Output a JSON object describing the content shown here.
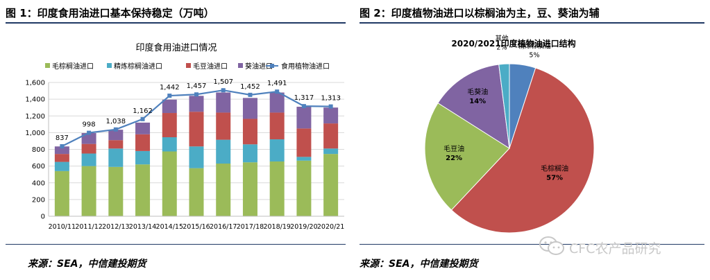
{
  "figure1": {
    "heading": "图 1：印度食用油进口基本保持稳定（万吨）",
    "source": "来源：SEA，中信建投期货"
  },
  "figure2": {
    "heading": "图 2：印度植物油进口以棕榈油为主，豆、葵油为辅",
    "source": "来源：SEA，中信建投期货"
  },
  "watermark": {
    "text": "CFC农产品研究",
    "icon": "wechat-icon"
  },
  "chart_data": [
    {
      "type": "bar",
      "stacked": true,
      "title": "印度食用油进口情况",
      "xlabel": "",
      "ylabel": "",
      "ylim": [
        0,
        1600
      ],
      "yticks": [
        "0",
        "200",
        "400",
        "600",
        "800",
        "1,000",
        "1,200",
        "1,400",
        "1,600"
      ],
      "grid": true,
      "legend_position": "top",
      "categories": [
        "2010/11",
        "2011/12",
        "2012/13",
        "2013/14",
        "2014/15",
        "2015/16",
        "2016/17",
        "2017/18",
        "2018/19",
        "2019/20",
        "2020/21"
      ],
      "series": [
        {
          "name": "毛棕榈油进口",
          "color": "#9bbb59",
          "values": [
            540,
            600,
            590,
            620,
            775,
            575,
            630,
            645,
            655,
            665,
            745
          ]
        },
        {
          "name": "精炼棕榈油进口",
          "color": "#4bacc6",
          "values": [
            110,
            150,
            220,
            160,
            170,
            260,
            285,
            215,
            265,
            45,
            65
          ]
        },
        {
          "name": "毛豆油进口",
          "color": "#c0504d",
          "values": [
            95,
            115,
            100,
            200,
            290,
            415,
            325,
            305,
            320,
            340,
            300
          ]
        },
        {
          "name": "葵油进口",
          "color": "#8064a2",
          "values": [
            90,
            130,
            125,
            140,
            160,
            190,
            240,
            250,
            240,
            260,
            190
          ]
        }
      ],
      "total": {
        "name": "食用植物油进口",
        "color": "#4f81bd",
        "values": [
          837,
          998,
          1038,
          1162,
          1442,
          1457,
          1507,
          1452,
          1491,
          1317,
          1313
        ],
        "labels": [
          "837",
          "998",
          "1,038",
          "1,162",
          "1,442",
          "1,457",
          "1,507",
          "1,452",
          "1,491",
          "1,317",
          "1,313"
        ]
      }
    },
    {
      "type": "pie",
      "title": "2020/2021印度植物油进口结构",
      "slices": [
        {
          "name": "精炼棕榈油",
          "value": 5,
          "label": "5%",
          "color": "#4f81bd"
        },
        {
          "name": "毛棕榈油",
          "value": 57,
          "label": "57%",
          "color": "#c0504d"
        },
        {
          "name": "毛豆油",
          "value": 22,
          "label": "22%",
          "color": "#9bbb59"
        },
        {
          "name": "毛葵油",
          "value": 14,
          "label": "14%",
          "color": "#8064a2"
        },
        {
          "name": "其他",
          "value": 2,
          "label": "2%",
          "color": "#4bacc6"
        }
      ]
    }
  ]
}
